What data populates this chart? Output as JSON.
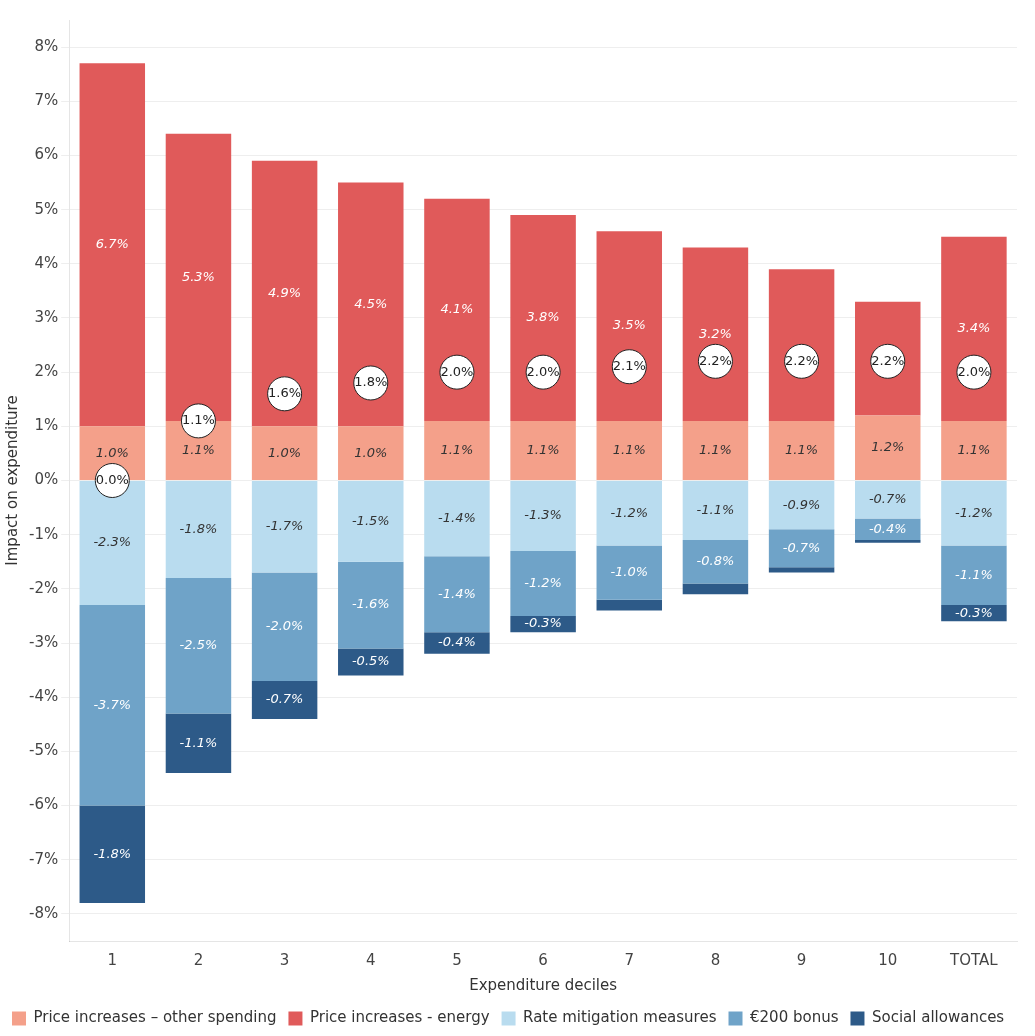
{
  "chart_data": {
    "type": "bar",
    "stacked": true,
    "xlabel": "Expenditure deciles",
    "ylabel": "Impact on expenditure",
    "categories": [
      "1",
      "2",
      "3",
      "4",
      "5",
      "6",
      "7",
      "8",
      "9",
      "10",
      "TOTAL"
    ],
    "ylim": [
      -8.5,
      8.5
    ],
    "yticks": [
      {
        "value": -8,
        "label": "-8%"
      },
      {
        "value": -7,
        "label": "-7%"
      },
      {
        "value": -6,
        "label": "-6%"
      },
      {
        "value": -5,
        "label": "-5%"
      },
      {
        "value": -4,
        "label": "-4%"
      },
      {
        "value": -3,
        "label": "-3%"
      },
      {
        "value": -2,
        "label": "-2%"
      },
      {
        "value": -1,
        "label": "-1%"
      },
      {
        "value": 0,
        "label": "0%"
      },
      {
        "value": 1,
        "label": "1%"
      },
      {
        "value": 2,
        "label": "2%"
      },
      {
        "value": 3,
        "label": "3%"
      },
      {
        "value": 4,
        "label": "4%"
      },
      {
        "value": 5,
        "label": "5%"
      },
      {
        "value": 6,
        "label": "6%"
      },
      {
        "value": 7,
        "label": "7%"
      },
      {
        "value": 8,
        "label": "8%"
      }
    ],
    "grid": "y",
    "legend": "bottom",
    "series": [
      {
        "name": "Price increases – other spending",
        "color": "#f4a08a",
        "values": [
          1.0,
          1.1,
          1.0,
          1.0,
          1.1,
          1.1,
          1.1,
          1.1,
          1.1,
          1.2,
          1.1
        ],
        "value_labels": [
          "1.0%",
          "1.1%",
          "1.0%",
          "1.0%",
          "1.1%",
          "1.1%",
          "1.1%",
          "1.1%",
          "1.1%",
          "1.2%",
          "1.1%"
        ]
      },
      {
        "name": "Price increases - energy",
        "color": "#e05a5a",
        "values": [
          6.7,
          5.3,
          4.9,
          4.5,
          4.1,
          3.8,
          3.5,
          3.2,
          2.8,
          2.1,
          3.4
        ],
        "value_labels": [
          "6.7%",
          "5.3%",
          "4.9%",
          "4.5%",
          "4.1%",
          "3.8%",
          "3.5%",
          "3.2%",
          null,
          null,
          "3.4%"
        ]
      },
      {
        "name": "Rate mitigation measures",
        "color": "#b9dcef",
        "values": [
          -2.3,
          -1.8,
          -1.7,
          -1.5,
          -1.4,
          -1.3,
          -1.2,
          -1.1,
          -0.9,
          -0.7,
          -1.2
        ],
        "value_labels": [
          "-2.3%",
          "-1.8%",
          "-1.7%",
          "-1.5%",
          "-1.4%",
          "-1.3%",
          "-1.2%",
          "-1.1%",
          "-0.9%",
          "-0.7%",
          "-1.2%"
        ]
      },
      {
        "name": "€200 bonus",
        "color": "#6fa3c8",
        "values": [
          -3.7,
          -2.5,
          -2.0,
          -1.6,
          -1.4,
          -1.2,
          -1.0,
          -0.8,
          -0.7,
          -0.4,
          -1.1
        ],
        "value_labels": [
          "-3.7%",
          "-2.5%",
          "-2.0%",
          "-1.6%",
          "-1.4%",
          "-1.2%",
          "-1.0%",
          "-0.8%",
          "-0.7%",
          "-0.4%",
          "-1.1%"
        ]
      },
      {
        "name": "Social allowances",
        "color": "#2d5a88",
        "values": [
          -1.8,
          -1.1,
          -0.7,
          -0.5,
          -0.4,
          -0.3,
          -0.2,
          -0.2,
          -0.1,
          -0.05,
          -0.3
        ],
        "value_labels": [
          "-1.8%",
          "-1.1%",
          "-0.7%",
          "-0.5%",
          "-0.4%",
          "-0.3%",
          null,
          null,
          null,
          null,
          "-0.3%"
        ]
      },
      {
        "type": "scatter",
        "marker": "circle",
        "color": "#ffffff",
        "x": [
          "1",
          "2",
          "3",
          "4",
          "5",
          "6",
          "7",
          "8",
          "9",
          "10",
          "TOTAL"
        ],
        "values": [
          0.0,
          1.1,
          1.6,
          1.8,
          2.0,
          2.0,
          2.1,
          2.2,
          2.2,
          2.2,
          2.0
        ],
        "value_labels": [
          "0.0%",
          "1.1%",
          "1.6%",
          "1.8%",
          "2.0%",
          "2.0%",
          "2.1%",
          "2.2%",
          "2.2%",
          "2.2%",
          "2.0%"
        ]
      }
    ]
  }
}
